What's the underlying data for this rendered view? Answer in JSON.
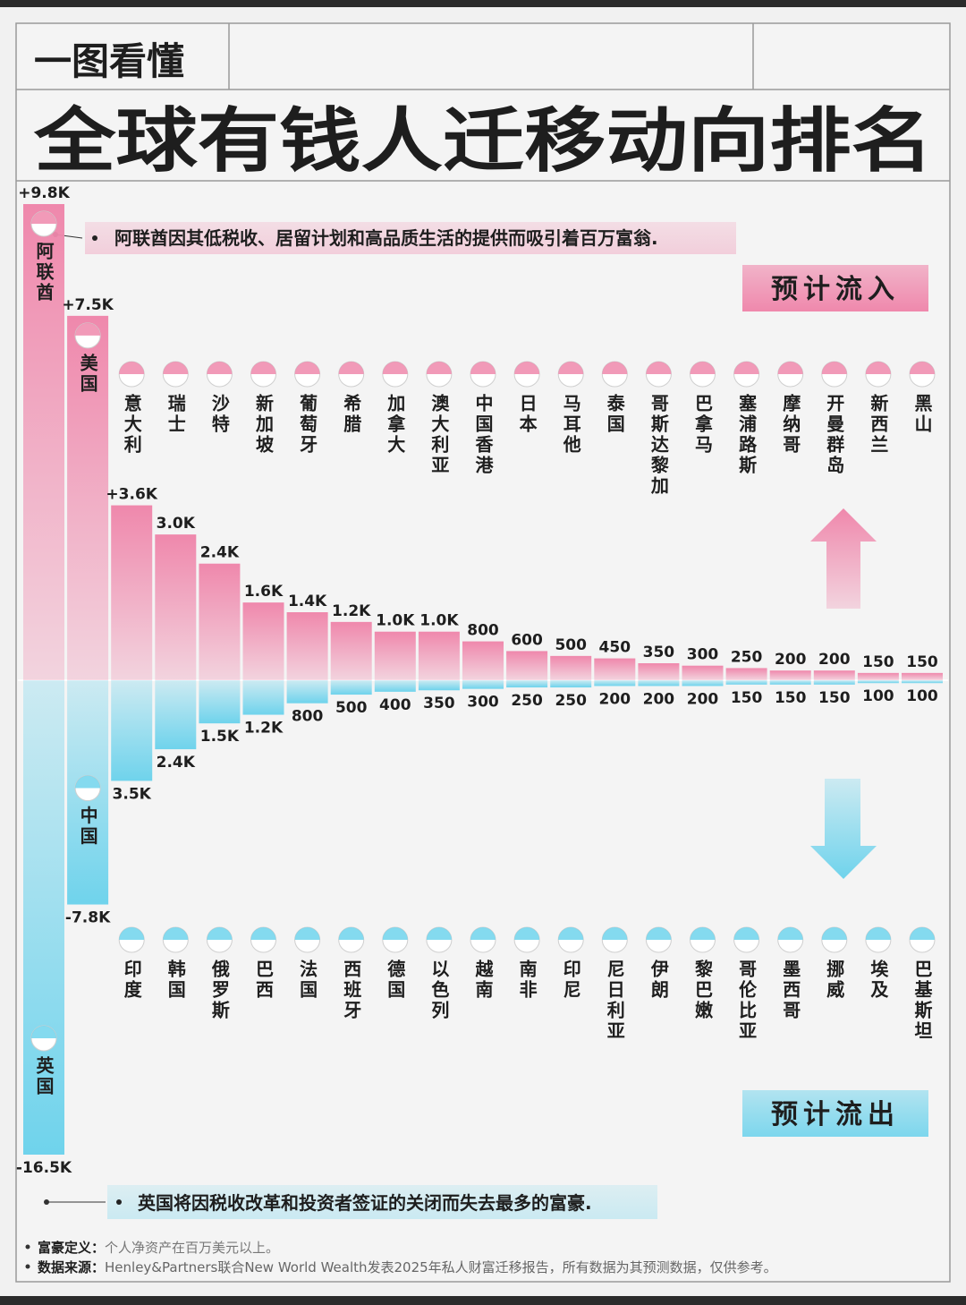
{
  "chart_data": {
    "type": "bar",
    "header": "一图看懂",
    "title": "全球有钱人迁移动向排名",
    "ylim": [
      0,
      9800
    ],
    "y2lim": [
      -16500,
      0
    ],
    "series": [
      {
        "name": "预计流入",
        "color": "#ef88ac",
        "categories": [
          "阿联酋",
          "美国",
          "意大利",
          "瑞士",
          "沙特",
          "新加坡",
          "葡萄牙",
          "希腊",
          "加拿大",
          "澳大利亚",
          "中国香港",
          "日本",
          "马耳他",
          "泰国",
          "哥斯达黎加",
          "巴拿马",
          "塞浦路斯",
          "摩纳哥",
          "开曼群岛",
          "新西兰",
          "黑山"
        ],
        "values": [
          9800,
          7500,
          3600,
          3000,
          2400,
          1600,
          1400,
          1200,
          1000,
          1000,
          800,
          600,
          500,
          450,
          350,
          300,
          250,
          200,
          200,
          150,
          150
        ],
        "value_labels": [
          "+9.8K",
          "+7.5K",
          "+3.6K",
          "3.0K",
          "2.4K",
          "1.6K",
          "1.4K",
          "1.2K",
          "1.0K",
          "1.0K",
          "800",
          "600",
          "500",
          "450",
          "350",
          "300",
          "250",
          "200",
          "200",
          "150",
          "150"
        ],
        "annotation": "阿联酋因其低税收、居留计划和高品质生活的提供而吸引着百万富翁."
      },
      {
        "name": "预计流出",
        "color": "#6fd3ec",
        "axis": "y2",
        "categories": [
          "英国",
          "中国",
          "印度",
          "韩国",
          "俄罗斯",
          "巴西",
          "法国",
          "西班牙",
          "德国",
          "以色列",
          "越南",
          "南非",
          "印尼",
          "尼日利亚",
          "伊朗",
          "黎巴嫩",
          "哥伦比亚",
          "墨西哥",
          "挪威",
          "埃及",
          "巴基斯坦"
        ],
        "values": [
          -16500,
          -7800,
          -3500,
          -2400,
          -1500,
          -1200,
          -800,
          -500,
          -400,
          -350,
          -300,
          -250,
          -250,
          -200,
          -200,
          -200,
          -150,
          -150,
          -150,
          -100,
          -100
        ],
        "value_labels": [
          "-16.5K",
          "-7.8K",
          "3.5K",
          "2.4K",
          "1.5K",
          "1.2K",
          "800",
          "500",
          "400",
          "350",
          "300",
          "250",
          "250",
          "200",
          "200",
          "200",
          "150",
          "150",
          "150",
          "100",
          "100"
        ],
        "annotation": "英国将因税收改革和投资者签证的关闭而失去最多的富豪."
      }
    ],
    "notes": [
      {
        "label": "富豪定义：",
        "text": "个人净资产在百万美元以上。"
      },
      {
        "label": "数据来源：",
        "text": "Henley&Partners联合New World Wealth发表2025年私人财富迁移报告，所有数据为其预测数据，仅供参考。"
      }
    ]
  }
}
